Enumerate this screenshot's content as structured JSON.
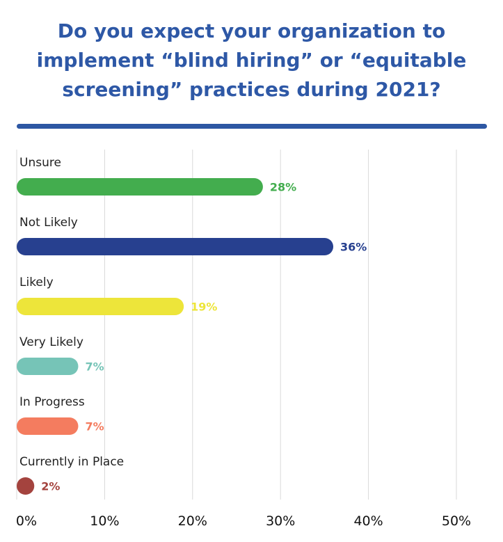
{
  "title": "Do you expect your organization to implement “blind hiring” or “equitable screening” practices during 2021?",
  "title_color": "#2E58A6",
  "rule_color": "#2D57A3",
  "chart_data": {
    "type": "bar",
    "orientation": "horizontal",
    "title": "Do you expect your organization to implement “blind hiring” or “equitable screening” practices during 2021?",
    "xlabel": "",
    "ylabel": "",
    "categories": [
      "Unsure",
      "Not Likely",
      "Likely",
      "Very Likely",
      "In Progress",
      "Currently in Place"
    ],
    "values": [
      28,
      36,
      19,
      7,
      7,
      2
    ],
    "value_labels": [
      "28%",
      "36%",
      "19%",
      "7%",
      "7%",
      "2%"
    ],
    "colors": [
      "#43AD4E",
      "#27408F",
      "#EDE53A",
      "#76C4B7",
      "#F47C5F",
      "#A4433E"
    ],
    "xlim": [
      0,
      50
    ],
    "x_ticks": [
      0,
      10,
      20,
      30,
      40,
      50
    ],
    "x_tick_labels": [
      "0%",
      "10%",
      "20%",
      "30%",
      "40%",
      "50%"
    ],
    "grid": "vertical",
    "legend": "none"
  }
}
